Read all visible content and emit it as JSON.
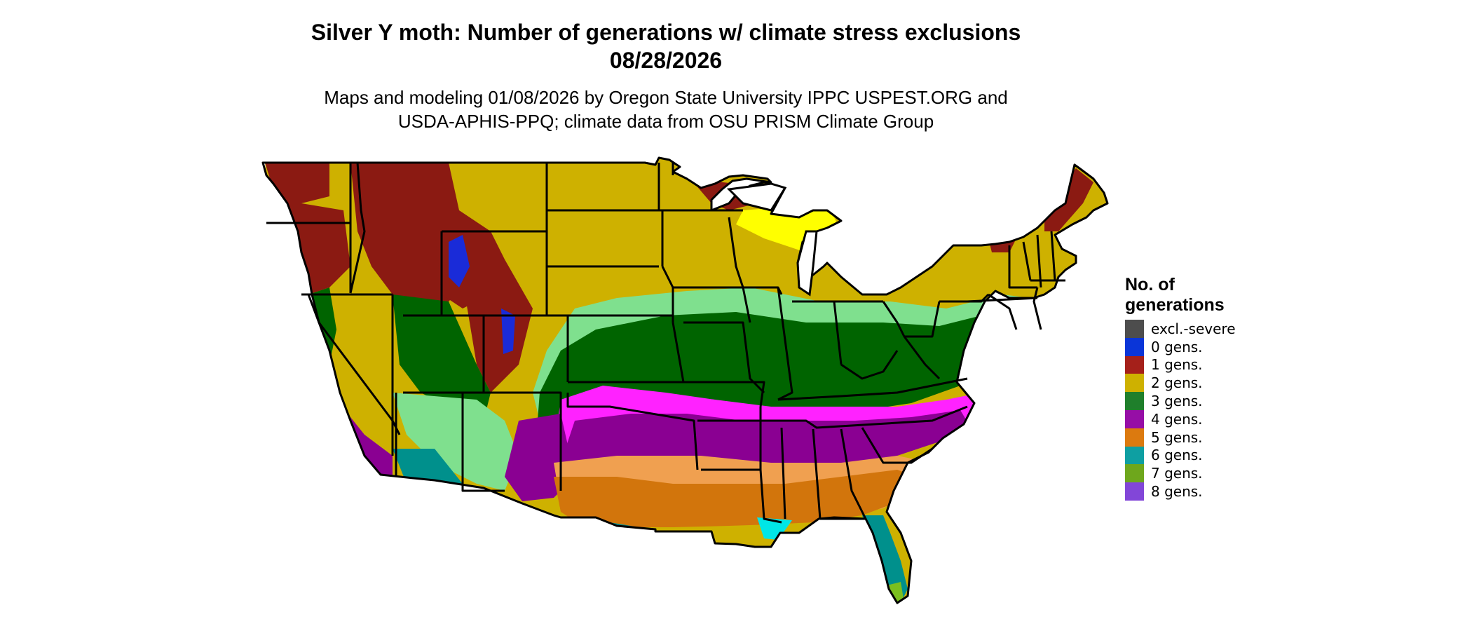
{
  "title": {
    "line1": "Silver Y moth: Number of generations w/ climate stress exclusions",
    "line2": "08/28/2026"
  },
  "subtitle": {
    "line1": "Maps and modeling 01/08/2026 by Oregon State University IPPC USPEST.ORG and",
    "line2": "USDA-APHIS-PPQ; climate data from OSU PRISM Climate Group"
  },
  "legend": {
    "title_line1": "No. of",
    "title_line2": "generations",
    "items": [
      {
        "label": "excl.-severe",
        "color": "#4d4d4d"
      },
      {
        "label": "0 gens.",
        "color": "#0a35d8"
      },
      {
        "label": "1 gens.",
        "color": "#a5201a"
      },
      {
        "label": "2 gens.",
        "color": "#ceb100"
      },
      {
        "label": "3 gens.",
        "color": "#1f7f2b"
      },
      {
        "label": "4 gens.",
        "color": "#960ea6"
      },
      {
        "label": "5 gens.",
        "color": "#dc7a0f"
      },
      {
        "label": "6 gens.",
        "color": "#0e9fa2"
      },
      {
        "label": "7 gens.",
        "color": "#6ea71c"
      },
      {
        "label": "8 gens.",
        "color": "#8246d8"
      }
    ]
  },
  "map_colors": {
    "one_gen": "#8b1a12",
    "two_gen": "#ceb100",
    "two_gen_light": "#ffff00",
    "three_gen": "#006400",
    "three_gen_light": "#7fe08e",
    "four_gen": "#8a0092",
    "four_gen_light": "#ff22ff",
    "five_gen": "#d2750c",
    "five_gen_light": "#f0a050",
    "six_gen": "#00908c",
    "six_gen_light": "#00e6e6",
    "seven_gen": "#7bbf1e",
    "zero_gen": "#1a2bd8",
    "border": "#000000"
  }
}
